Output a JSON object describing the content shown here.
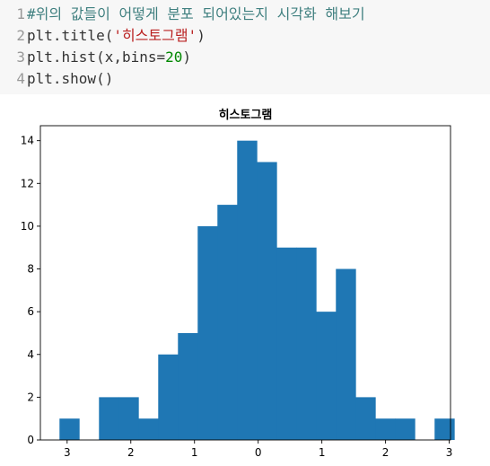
{
  "code_cell": {
    "lines": [
      {
        "num": "1",
        "segments": [
          {
            "text": "#위의 값들이 어떻게 분포 되어있는지 시각화 해보기",
            "cls": "comment"
          }
        ]
      },
      {
        "num": "2",
        "segments": [
          {
            "text": "plt.title(",
            "cls": ""
          },
          {
            "text": "'히스토그램'",
            "cls": "str"
          },
          {
            "text": ")",
            "cls": ""
          }
        ]
      },
      {
        "num": "3",
        "segments": [
          {
            "text": "plt.hist(x,bins=",
            "cls": ""
          },
          {
            "text": "20",
            "cls": "num"
          },
          {
            "text": ")",
            "cls": ""
          }
        ]
      },
      {
        "num": "4",
        "segments": [
          {
            "text": "plt.show()",
            "cls": ""
          }
        ]
      }
    ]
  },
  "chart_data": {
    "type": "bar",
    "title": "히스토그램",
    "bar_color": "#1f77b4",
    "xlim": [
      -3.42,
      3.02
    ],
    "ylim": [
      0,
      14.7
    ],
    "x_ticks": [
      -3,
      -2,
      -1,
      0,
      1,
      2,
      3
    ],
    "x_tick_labels": [
      "3",
      "2",
      "1",
      "0",
      "1",
      "2",
      "3"
    ],
    "y_ticks": [
      0,
      2,
      4,
      6,
      8,
      10,
      12,
      14
    ],
    "y_tick_labels": [
      "0",
      "2",
      "4",
      "6",
      "8",
      "10",
      "12",
      "14"
    ],
    "bin_edges": [
      -3.12,
      -2.81,
      -2.5,
      -2.19,
      -1.88,
      -1.57,
      -1.26,
      -0.95,
      -0.64,
      -0.33,
      -0.02,
      0.29,
      0.6,
      0.91,
      1.22,
      1.53,
      1.84,
      2.15,
      2.46,
      2.77,
      3.08
    ],
    "counts": [
      1,
      0,
      2,
      2,
      1,
      4,
      5,
      10,
      11,
      14,
      13,
      9,
      9,
      6,
      8,
      2,
      1,
      1,
      0,
      1
    ]
  }
}
